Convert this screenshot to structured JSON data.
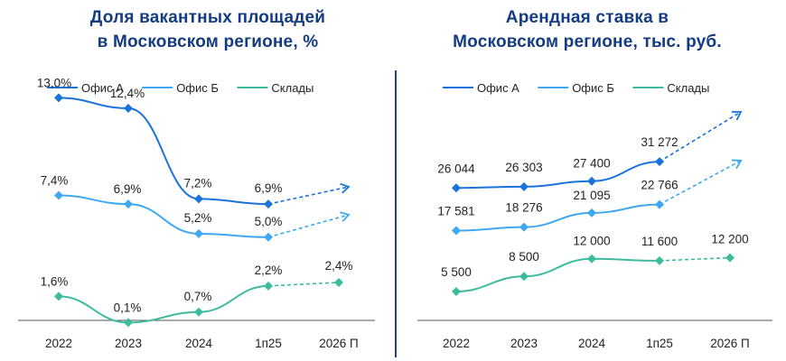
{
  "chart_data": [
    {
      "type": "line",
      "title": [
        "Доля вакантных площадей",
        "в Московском регионе, %"
      ],
      "categories": [
        "2022",
        "2023",
        "2024",
        "1п25",
        "2026 П"
      ],
      "legend_position": "top-left",
      "series": [
        {
          "name": "Офис А",
          "color": "#1a73d9",
          "values": [
            13.0,
            12.4,
            7.2,
            6.9,
            null
          ],
          "labels": [
            "13,0%",
            "12,4%",
            "7,2%",
            "6,9%",
            ""
          ]
        },
        {
          "name": "Офис Б",
          "color": "#3ea9f0",
          "values": [
            7.4,
            6.9,
            5.2,
            5.0,
            null
          ],
          "labels": [
            "7,4%",
            "6,9%",
            "5,2%",
            "5,0%",
            ""
          ]
        },
        {
          "name": "Склады",
          "color": "#3dbb9c",
          "values": [
            1.6,
            0.1,
            0.7,
            2.2,
            2.4
          ],
          "labels": [
            "1,6%",
            "0,1%",
            "0,7%",
            "2,2%",
            "2,4%"
          ]
        }
      ],
      "forecast_from_index": 3,
      "ylim": [
        0,
        14
      ]
    },
    {
      "type": "line",
      "title": [
        "Арендная ставка в",
        "Московском регионе, тыс. руб."
      ],
      "categories": [
        "2022",
        "2023",
        "2024",
        "1п25",
        "2026 П"
      ],
      "legend_position": "top-left",
      "series": [
        {
          "name": "Офис А",
          "color": "#1a73d9",
          "values": [
            26044,
            26303,
            27400,
            31272,
            null
          ],
          "labels": [
            "26 044",
            "26 303",
            "27 400",
            "31 272",
            ""
          ]
        },
        {
          "name": "Офис Б",
          "color": "#3ea9f0",
          "values": [
            17581,
            18276,
            21095,
            22766,
            null
          ],
          "labels": [
            "17 581",
            "18 276",
            "21 095",
            "22 766",
            ""
          ]
        },
        {
          "name": "Склады",
          "color": "#3dbb9c",
          "values": [
            5500,
            8500,
            12000,
            11600,
            12200
          ],
          "labels": [
            "5 500",
            "8 500",
            "12 000",
            "11 600",
            "12 200"
          ]
        }
      ],
      "forecast_from_index": 3,
      "ylim": [
        0,
        40000
      ]
    }
  ]
}
